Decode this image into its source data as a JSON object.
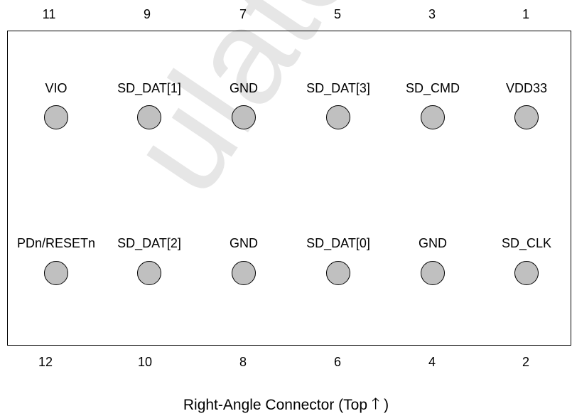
{
  "connector": {
    "top_row_numbers": [
      "11",
      "9",
      "7",
      "5",
      "3",
      "1"
    ],
    "top_row_labels": [
      "VIO",
      "SD_DAT[1]",
      "GND",
      "SD_DAT[3]",
      "SD_CMD",
      "VDD33"
    ],
    "bottom_row_labels": [
      "PDn/RESETn",
      "SD_DAT[2]",
      "GND",
      "SD_DAT[0]",
      "GND",
      "SD_CLK"
    ],
    "bottom_row_numbers": [
      "12",
      "10",
      "8",
      "6",
      "4",
      "2"
    ],
    "pad_color": "#c0c0c0",
    "outline_color": "#000000"
  },
  "caption": {
    "text": "Right-Angle Connector (Top",
    "arrow_icon": "up-arrow",
    "arrow_glyph": "🡑",
    "close": ")"
  },
  "watermark": {
    "text": "ulatory Use",
    "color": "#c8c8c8"
  }
}
